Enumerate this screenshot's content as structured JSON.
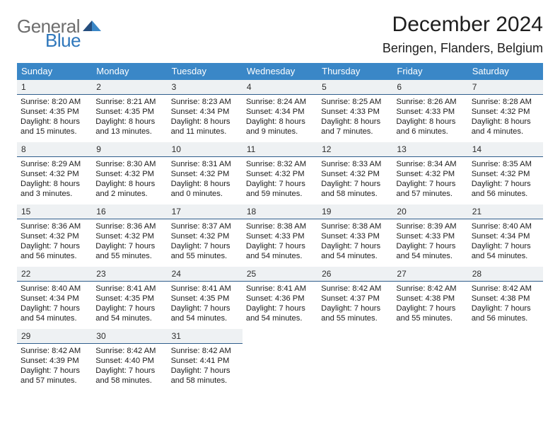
{
  "logo": {
    "line1": "General",
    "line2": "Blue",
    "gray": "#6d6d6d",
    "blue": "#2f77bb"
  },
  "title": "December 2024",
  "location": "Beringen, Flanders, Belgium",
  "theme": {
    "header_bg": "#3a87c7",
    "header_fg": "#ffffff",
    "daynum_bg": "#eef1f3",
    "daynum_border": "#2f5d8c",
    "text": "#1c1c1c"
  },
  "weekdays": [
    "Sunday",
    "Monday",
    "Tuesday",
    "Wednesday",
    "Thursday",
    "Friday",
    "Saturday"
  ],
  "days": [
    {
      "n": 1,
      "sr": "8:20 AM",
      "ss": "4:35 PM",
      "dh": 8,
      "dm": 15
    },
    {
      "n": 2,
      "sr": "8:21 AM",
      "ss": "4:35 PM",
      "dh": 8,
      "dm": 13
    },
    {
      "n": 3,
      "sr": "8:23 AM",
      "ss": "4:34 PM",
      "dh": 8,
      "dm": 11
    },
    {
      "n": 4,
      "sr": "8:24 AM",
      "ss": "4:34 PM",
      "dh": 8,
      "dm": 9
    },
    {
      "n": 5,
      "sr": "8:25 AM",
      "ss": "4:33 PM",
      "dh": 8,
      "dm": 7
    },
    {
      "n": 6,
      "sr": "8:26 AM",
      "ss": "4:33 PM",
      "dh": 8,
      "dm": 6
    },
    {
      "n": 7,
      "sr": "8:28 AM",
      "ss": "4:32 PM",
      "dh": 8,
      "dm": 4
    },
    {
      "n": 8,
      "sr": "8:29 AM",
      "ss": "4:32 PM",
      "dh": 8,
      "dm": 3
    },
    {
      "n": 9,
      "sr": "8:30 AM",
      "ss": "4:32 PM",
      "dh": 8,
      "dm": 2
    },
    {
      "n": 10,
      "sr": "8:31 AM",
      "ss": "4:32 PM",
      "dh": 8,
      "dm": 0
    },
    {
      "n": 11,
      "sr": "8:32 AM",
      "ss": "4:32 PM",
      "dh": 7,
      "dm": 59
    },
    {
      "n": 12,
      "sr": "8:33 AM",
      "ss": "4:32 PM",
      "dh": 7,
      "dm": 58
    },
    {
      "n": 13,
      "sr": "8:34 AM",
      "ss": "4:32 PM",
      "dh": 7,
      "dm": 57
    },
    {
      "n": 14,
      "sr": "8:35 AM",
      "ss": "4:32 PM",
      "dh": 7,
      "dm": 56
    },
    {
      "n": 15,
      "sr": "8:36 AM",
      "ss": "4:32 PM",
      "dh": 7,
      "dm": 56
    },
    {
      "n": 16,
      "sr": "8:36 AM",
      "ss": "4:32 PM",
      "dh": 7,
      "dm": 55
    },
    {
      "n": 17,
      "sr": "8:37 AM",
      "ss": "4:32 PM",
      "dh": 7,
      "dm": 55
    },
    {
      "n": 18,
      "sr": "8:38 AM",
      "ss": "4:33 PM",
      "dh": 7,
      "dm": 54
    },
    {
      "n": 19,
      "sr": "8:38 AM",
      "ss": "4:33 PM",
      "dh": 7,
      "dm": 54
    },
    {
      "n": 20,
      "sr": "8:39 AM",
      "ss": "4:33 PM",
      "dh": 7,
      "dm": 54
    },
    {
      "n": 21,
      "sr": "8:40 AM",
      "ss": "4:34 PM",
      "dh": 7,
      "dm": 54
    },
    {
      "n": 22,
      "sr": "8:40 AM",
      "ss": "4:34 PM",
      "dh": 7,
      "dm": 54
    },
    {
      "n": 23,
      "sr": "8:41 AM",
      "ss": "4:35 PM",
      "dh": 7,
      "dm": 54
    },
    {
      "n": 24,
      "sr": "8:41 AM",
      "ss": "4:35 PM",
      "dh": 7,
      "dm": 54
    },
    {
      "n": 25,
      "sr": "8:41 AM",
      "ss": "4:36 PM",
      "dh": 7,
      "dm": 54
    },
    {
      "n": 26,
      "sr": "8:42 AM",
      "ss": "4:37 PM",
      "dh": 7,
      "dm": 55
    },
    {
      "n": 27,
      "sr": "8:42 AM",
      "ss": "4:38 PM",
      "dh": 7,
      "dm": 55
    },
    {
      "n": 28,
      "sr": "8:42 AM",
      "ss": "4:38 PM",
      "dh": 7,
      "dm": 56
    },
    {
      "n": 29,
      "sr": "8:42 AM",
      "ss": "4:39 PM",
      "dh": 7,
      "dm": 57
    },
    {
      "n": 30,
      "sr": "8:42 AM",
      "ss": "4:40 PM",
      "dh": 7,
      "dm": 58
    },
    {
      "n": 31,
      "sr": "8:42 AM",
      "ss": "4:41 PM",
      "dh": 7,
      "dm": 58
    }
  ],
  "labels": {
    "sunrise": "Sunrise:",
    "sunset": "Sunset:",
    "daylight": "Daylight:",
    "hours": "hours",
    "and": "and",
    "minutes": "minutes."
  }
}
